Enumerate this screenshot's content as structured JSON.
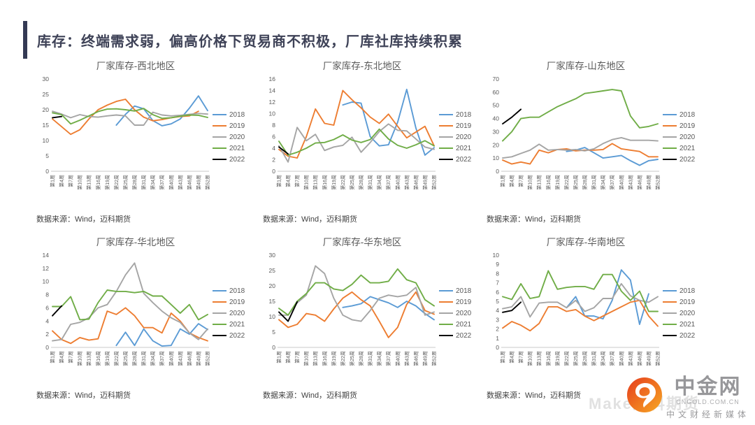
{
  "slide": {
    "title": "库存：终端需求弱，偏高价格下贸易商不积极，厂库社库持续积累",
    "accent_color": "#343a54",
    "background": "#ffffff"
  },
  "weeks": [
    1,
    4,
    7,
    10,
    13,
    16,
    19,
    22,
    25,
    28,
    31,
    34,
    37,
    40,
    43,
    46,
    49,
    52
  ],
  "x_tick_labels": [
    "第1周",
    "第4周",
    "第7周",
    "第10周",
    "第13周",
    "第16周",
    "第19周",
    "第22周",
    "第25周",
    "第28周",
    "第31周",
    "第34周",
    "第37周",
    "第40周",
    "第43周",
    "第46周",
    "第49周",
    "第52周"
  ],
  "legend_years": [
    "2018",
    "2019",
    "2020",
    "2021",
    "2022"
  ],
  "series_colors": {
    "2018": "#5B9BD5",
    "2019": "#ED7D31",
    "2020": "#A5A5A5",
    "2021": "#70AD47",
    "2022": "#000000"
  },
  "logo": {
    "brand": "中金网",
    "domain": "CNGOLD.COM.CN",
    "tagline": "中文财经新媒体",
    "watermark": "Make迈科期货",
    "icon_colors": [
      "#e63c1e",
      "#f7a923"
    ]
  },
  "chart_data": [
    {
      "type": "line",
      "title": "厂家库存-西北地区",
      "source": "数据来源：Wind，迈科期货",
      "ylim": [
        0,
        30
      ],
      "ytick_step": 5,
      "legend_position": "right",
      "grid": false,
      "series": [
        {
          "name": "2018",
          "color": "#5B9BD5",
          "values": [
            null,
            null,
            null,
            null,
            null,
            null,
            null,
            15,
            18.5,
            21.2,
            20.3,
            16.5,
            14.8,
            15.4,
            17,
            20.5,
            24.5,
            19.7
          ]
        },
        {
          "name": "2019",
          "color": "#ED7D31",
          "values": [
            17,
            14.5,
            12,
            13.5,
            17,
            20,
            21.5,
            22.7,
            23.4,
            20,
            17.6,
            16.4,
            16.8,
            17.4,
            17.8,
            18,
            19.5,
            null
          ]
        },
        {
          "name": "2020",
          "color": "#A5A5A5",
          "values": [
            19.5,
            18.6,
            17.4,
            18.4,
            17.8,
            17.6,
            18,
            18.3,
            18,
            15,
            15,
            19.2,
            18.3,
            18,
            18.2,
            18.5,
            18.8,
            18.6
          ]
        },
        {
          "name": "2021",
          "color": "#70AD47",
          "values": [
            19,
            18.4,
            15.4,
            16.6,
            18,
            19.4,
            20.2,
            20.3,
            20,
            19.6,
            20.4,
            18.4,
            17.2,
            17.4,
            17.9,
            18.3,
            18.2,
            17.5
          ]
        },
        {
          "name": "2022",
          "color": "#000000",
          "values": [
            17.4,
            17.8,
            null,
            null,
            null,
            null,
            null,
            null,
            null,
            null,
            null,
            null,
            null,
            null,
            null,
            null,
            null,
            null
          ]
        }
      ]
    },
    {
      "type": "line",
      "title": "厂家库存-东北地区",
      "source": "数据来源：Wind，迈科期货",
      "ylim": [
        0,
        16
      ],
      "ytick_step": 2,
      "legend_position": "right",
      "grid": false,
      "series": [
        {
          "name": "2018",
          "color": "#5B9BD5",
          "values": [
            null,
            null,
            null,
            null,
            null,
            null,
            null,
            11.5,
            12,
            11.8,
            6,
            4.4,
            4.6,
            8.5,
            14.2,
            7.5,
            2.8,
            4.1
          ]
        },
        {
          "name": "2019",
          "color": "#ED7D31",
          "values": [
            3.8,
            2.6,
            2.3,
            6,
            10.8,
            8.3,
            8,
            14,
            12.4,
            11,
            9.4,
            8.3,
            9.9,
            7.8,
            5.8,
            6.8,
            7.8,
            4.4
          ]
        },
        {
          "name": "2020",
          "color": "#A5A5A5",
          "values": [
            4.4,
            1.6,
            7.6,
            5.3,
            6.4,
            3.6,
            4.2,
            4.5,
            5.9,
            3.3,
            5,
            6.9,
            8.2,
            7.1,
            7,
            5.6,
            4.2,
            3.8
          ]
        },
        {
          "name": "2021",
          "color": "#70AD47",
          "values": [
            5.2,
            2.8,
            3.3,
            4,
            4.9,
            5,
            5.5,
            6.3,
            5.4,
            5,
            5.5,
            7.3,
            5.6,
            4.5,
            4,
            4.6,
            5.3,
            4.4
          ]
        },
        {
          "name": "2022",
          "color": "#000000",
          "values": [
            4.2,
            3,
            null,
            null,
            null,
            null,
            null,
            null,
            null,
            null,
            null,
            null,
            null,
            null,
            null,
            null,
            null,
            null
          ]
        }
      ]
    },
    {
      "type": "line",
      "title": "厂家库存-山东地区",
      "source": "数据来源：Wind，迈科期货",
      "ylim": [
        0,
        70
      ],
      "ytick_step": 10,
      "legend_position": "right",
      "grid": false,
      "series": [
        {
          "name": "2018",
          "color": "#5B9BD5",
          "values": [
            null,
            null,
            null,
            null,
            null,
            null,
            null,
            15,
            16,
            18,
            14,
            10,
            11,
            12,
            8,
            4.5,
            8,
            9
          ]
        },
        {
          "name": "2019",
          "color": "#ED7D31",
          "values": [
            8.5,
            5.5,
            7,
            5.5,
            16,
            14,
            16.5,
            17,
            15.5,
            16,
            16,
            16.5,
            21,
            17,
            16,
            15,
            11,
            11
          ]
        },
        {
          "name": "2020",
          "color": "#A5A5A5",
          "values": [
            10,
            11,
            13.5,
            16,
            20.5,
            16,
            16.5,
            16,
            16.5,
            15.5,
            17,
            21,
            24,
            25.5,
            23.5,
            23.5,
            23.5,
            23
          ]
        },
        {
          "name": "2021",
          "color": "#70AD47",
          "values": [
            23,
            30,
            40,
            41,
            41,
            45,
            49,
            52,
            55,
            59,
            60,
            61,
            62,
            61,
            42,
            33,
            34,
            36
          ]
        },
        {
          "name": "2022",
          "color": "#000000",
          "values": [
            36,
            41,
            47,
            null,
            null,
            null,
            null,
            null,
            null,
            null,
            null,
            null,
            null,
            null,
            null,
            null,
            null,
            null
          ]
        }
      ]
    },
    {
      "type": "line",
      "title": "厂家库存-华北地区",
      "source": "数据来源：Wind，迈科期货",
      "ylim": [
        0,
        14
      ],
      "ytick_step": 2,
      "legend_position": "right",
      "grid": false,
      "series": [
        {
          "name": "2018",
          "color": "#5B9BD5",
          "values": [
            null,
            null,
            null,
            null,
            null,
            null,
            null,
            0.3,
            2.3,
            0.3,
            2.8,
            1,
            0.2,
            0.3,
            2.8,
            2,
            3.6,
            2.7
          ]
        },
        {
          "name": "2019",
          "color": "#ED7D31",
          "values": [
            2.5,
            1.2,
            0.6,
            1.5,
            1.1,
            1.3,
            5.5,
            5,
            6,
            4.8,
            3,
            3,
            2.2,
            5.2,
            4,
            2.2,
            1.5,
            1
          ]
        },
        {
          "name": "2020",
          "color": "#A5A5A5",
          "values": [
            1,
            1.2,
            3.5,
            3.8,
            4.5,
            6,
            6.5,
            8.5,
            11,
            12.8,
            8.2,
            6.8,
            5.5,
            4.5,
            3.8,
            2.2,
            1.2,
            2.8
          ]
        },
        {
          "name": "2021",
          "color": "#70AD47",
          "values": [
            6.2,
            6.2,
            7.7,
            4.2,
            4.3,
            6.8,
            8.7,
            8.5,
            8.5,
            8.3,
            8.5,
            7.8,
            7.8,
            6.5,
            5.2,
            6.5,
            4.2,
            5
          ]
        },
        {
          "name": "2022",
          "color": "#000000",
          "values": [
            4.8,
            6.3,
            null,
            null,
            null,
            null,
            null,
            null,
            null,
            null,
            null,
            null,
            null,
            null,
            null,
            null,
            null,
            null
          ]
        }
      ]
    },
    {
      "type": "line",
      "title": "厂家库存-华东地区",
      "source": "数据来源：Wind，迈科期货",
      "ylim": [
        0,
        30
      ],
      "ytick_step": 5,
      "legend_position": "right",
      "grid": false,
      "series": [
        {
          "name": "2018",
          "color": "#5B9BD5",
          "values": [
            null,
            null,
            null,
            null,
            null,
            null,
            null,
            13,
            13.5,
            14.2,
            16.5,
            15.5,
            14.5,
            13,
            15,
            13.5,
            11,
            9
          ]
        },
        {
          "name": "2019",
          "color": "#ED7D31",
          "values": [
            9,
            6.5,
            7.5,
            11,
            10.5,
            8.5,
            12.5,
            16,
            18,
            15.5,
            13.5,
            8.5,
            3.2,
            6.5,
            14,
            18,
            12,
            10.8
          ]
        },
        {
          "name": "2020",
          "color": "#A5A5A5",
          "values": [
            10.5,
            10.5,
            14.5,
            17,
            26.5,
            24,
            16,
            10.5,
            9,
            8.5,
            12,
            16,
            17,
            16.5,
            17,
            19.5,
            10.5,
            11.5
          ]
        },
        {
          "name": "2021",
          "color": "#70AD47",
          "values": [
            12.7,
            10.5,
            15,
            17.5,
            21,
            21,
            19,
            18.5,
            20.5,
            23.5,
            21,
            21,
            21.5,
            25.5,
            22,
            21,
            15.5,
            13.5
          ]
        },
        {
          "name": "2022",
          "color": "#000000",
          "values": [
            11.5,
            8.5,
            14.8,
            null,
            null,
            null,
            null,
            null,
            null,
            null,
            null,
            null,
            null,
            null,
            null,
            null,
            null,
            null
          ]
        }
      ]
    },
    {
      "type": "line",
      "title": "厂家库存-华南地区",
      "source": "数据来源：Wind，迈科期货",
      "ylim": [
        0,
        10
      ],
      "ytick_step": 1,
      "legend_position": "right",
      "grid": false,
      "series": [
        {
          "name": "2018",
          "color": "#5B9BD5",
          "values": [
            null,
            null,
            null,
            null,
            null,
            null,
            null,
            4.3,
            5.5,
            3.4,
            3.4,
            3.1,
            5.1,
            8.4,
            7.3,
            2.5,
            5.8,
            null
          ]
        },
        {
          "name": "2019",
          "color": "#ED7D31",
          "values": [
            2.1,
            2.8,
            2.4,
            1.8,
            2.6,
            4.4,
            4.4,
            3.9,
            4.1,
            3.4,
            2.9,
            3.4,
            3.9,
            4.4,
            4.9,
            5.1,
            3.4,
            2.3
          ]
        },
        {
          "name": "2020",
          "color": "#A5A5A5",
          "values": [
            4.2,
            4.4,
            5.5,
            3.3,
            4.8,
            4.9,
            4.9,
            4.3,
            5.1,
            3.9,
            4.3,
            5.3,
            5.3,
            6.9,
            5.6,
            5.1,
            4.9,
            5.5
          ]
        },
        {
          "name": "2021",
          "color": "#70AD47",
          "values": [
            5.5,
            5.2,
            6.9,
            5.3,
            5.5,
            8.3,
            6.3,
            6.5,
            6.6,
            6.6,
            6.3,
            7.9,
            7.9,
            6.1,
            5.1,
            6.1,
            3.9,
            3.9
          ]
        },
        {
          "name": "2022",
          "color": "#000000",
          "values": [
            3.8,
            4,
            4.9,
            null,
            null,
            null,
            null,
            null,
            null,
            null,
            null,
            null,
            null,
            null,
            null,
            null,
            null,
            null
          ]
        }
      ]
    }
  ]
}
